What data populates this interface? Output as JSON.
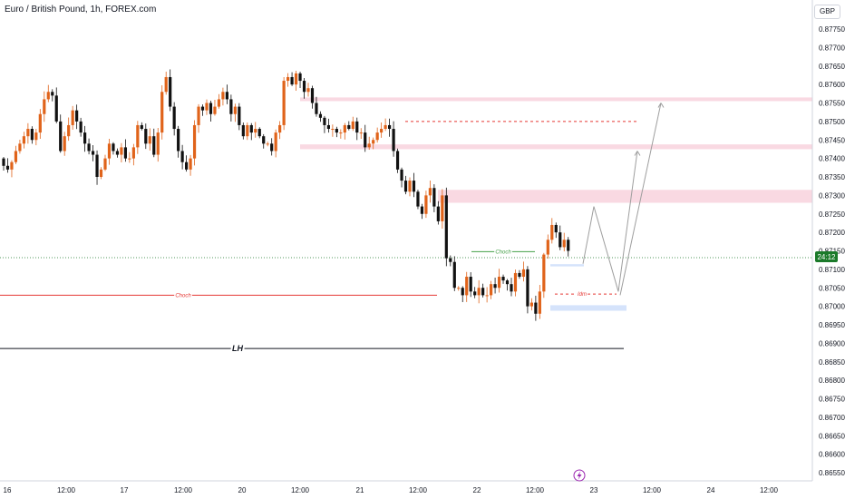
{
  "header": {
    "title": "Euro / British Pound, 1h, FOREX.com",
    "currency": "GBP"
  },
  "price_tag": "24:12",
  "event_icon": "lightning-icon",
  "colors": {
    "up": "#e0631a",
    "down": "#111111",
    "supply": "#f9d9e2",
    "demand": "#d5e3fb",
    "choch_red": "#e53935",
    "choch_green": "#43a047",
    "lh_line": "#131722",
    "path": "#9e9e9e",
    "last_price": "#1b7a2a",
    "axis": "#d1d4dc"
  },
  "chart_data": {
    "type": "candlestick",
    "title": "Euro / British Pound, 1h, FOREX.com",
    "ylim": [
      0.8653,
      0.878
    ],
    "y_ticks": [
      "0.87750",
      "0.87700",
      "0.87650",
      "0.87600",
      "0.87550",
      "0.87500",
      "0.87450",
      "0.87400",
      "0.87350",
      "0.87300",
      "0.87250",
      "0.87200",
      "0.87150",
      "0.87100",
      "0.87050",
      "0.87000",
      "0.86950",
      "0.86900",
      "0.86850",
      "0.86800",
      "0.86750",
      "0.86700",
      "0.86650",
      "0.86600",
      "0.86550"
    ],
    "x_ticks": [
      "16",
      "12:00",
      "17",
      "12:00",
      "20",
      "12:00",
      "21",
      "12:00",
      "22",
      "12:00",
      "23",
      "12:00",
      "24",
      "12:00"
    ],
    "close_path": [
      0.8738,
      0.8737,
      0.8739,
      0.8742,
      0.8744,
      0.8746,
      0.8748,
      0.8745,
      0.8747,
      0.8752,
      0.8756,
      0.8758,
      0.8757,
      0.875,
      0.8742,
      0.8746,
      0.8749,
      0.8753,
      0.875,
      0.8747,
      0.8744,
      0.8742,
      0.8741,
      0.8735,
      0.8737,
      0.874,
      0.8744,
      0.8742,
      0.8741,
      0.8743,
      0.874,
      0.874,
      0.8743,
      0.8749,
      0.8748,
      0.8744,
      0.8746,
      0.8741,
      0.8747,
      0.8758,
      0.8762,
      0.8754,
      0.8748,
      0.8742,
      0.8739,
      0.8737,
      0.874,
      0.8749,
      0.8754,
      0.8753,
      0.8755,
      0.8752,
      0.8754,
      0.8756,
      0.8758,
      0.8756,
      0.8752,
      0.8754,
      0.8749,
      0.8746,
      0.8749,
      0.8747,
      0.8748,
      0.8746,
      0.8744,
      0.8744,
      0.8742,
      0.8747,
      0.8749,
      0.8761,
      0.8762,
      0.876,
      0.8763,
      0.8761,
      0.8758,
      0.8759,
      0.8755,
      0.8752,
      0.8751,
      0.8749,
      0.8748,
      0.8748,
      0.8747,
      0.8747,
      0.8749,
      0.8748,
      0.875,
      0.8747,
      0.8747,
      0.8743,
      0.8744,
      0.8745,
      0.8747,
      0.8748,
      0.8749,
      0.8748,
      0.8742,
      0.8737,
      0.8734,
      0.8731,
      0.8734,
      0.8731,
      0.8727,
      0.8725,
      0.873,
      0.8732,
      0.8727,
      0.8723,
      0.873,
      0.8713,
      0.8712,
      0.8705,
      0.8705,
      0.8703,
      0.8708,
      0.8704,
      0.8703,
      0.8705,
      0.8703,
      0.8703,
      0.8706,
      0.8705,
      0.8708,
      0.8707,
      0.8706,
      0.8704,
      0.8709,
      0.8708,
      0.871,
      0.87,
      0.8701,
      0.8698,
      0.8704,
      0.8714,
      0.8718,
      0.8722,
      0.872,
      0.8716,
      0.8718,
      0.8715
    ],
    "annotations": {
      "supply_zones": [
        [
          0.87555,
          0.87565
        ],
        [
          0.87425,
          0.87438
        ],
        [
          0.8728,
          0.87315
        ]
      ],
      "demand_zones": [
        [
          0.87108,
          0.87114
        ],
        [
          0.86988,
          0.87003
        ]
      ],
      "choch_red": {
        "label": "Choch",
        "price": 0.8703
      },
      "choch_green": {
        "label": "Choch",
        "price": 0.87148
      },
      "idm": {
        "label": "Idm",
        "price": 0.87033
      },
      "lh": {
        "label": "LH",
        "price": 0.86886
      },
      "target_line": 0.875,
      "projected_path": [
        [
          0.87115,
          0
        ],
        [
          0.8727,
          1
        ],
        [
          0.8704,
          2
        ],
        [
          0.8742,
          3
        ],
        [
          0.8703,
          2.7
        ],
        [
          0.8755,
          4
        ]
      ]
    }
  }
}
